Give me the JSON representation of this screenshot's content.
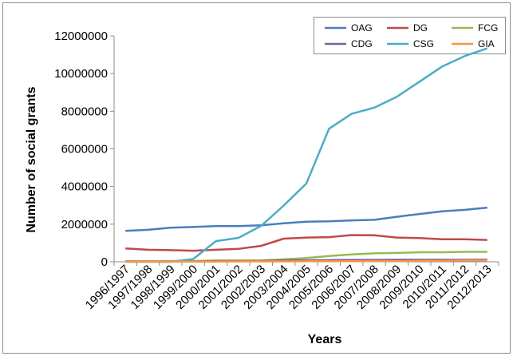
{
  "chart_data": {
    "type": "line",
    "title": "",
    "xlabel": "Years",
    "ylabel": "Number of social grants",
    "ylim": [
      0,
      12000000
    ],
    "yticks": [
      0,
      2000000,
      4000000,
      6000000,
      8000000,
      10000000,
      12000000
    ],
    "ytick_labels": [
      "0",
      "2000000",
      "4000000",
      "6000000",
      "8000000",
      "10000000",
      "12000000"
    ],
    "grid": false,
    "legend_position": "top-right",
    "categories": [
      "1996/1997",
      "1997/1998",
      "1998/1999",
      "1999/2000",
      "2000/2001",
      "2001/2002",
      "2002/2003",
      "2003/2004",
      "2004/2005",
      "2005/2006",
      "2006/2007",
      "2007/2008",
      "2008/2009",
      "2009/2010",
      "2010/2011",
      "2011/2012",
      "2012/2013"
    ],
    "series": [
      {
        "name": "OAG",
        "color": "#4A7EBB",
        "values": [
          1640000,
          1700000,
          1810000,
          1850000,
          1900000,
          1900000,
          1940000,
          2050000,
          2130000,
          2150000,
          2200000,
          2230000,
          2390000,
          2540000,
          2680000,
          2760000,
          2880000
        ]
      },
      {
        "name": "DG",
        "color": "#BE4B48",
        "values": [
          710000,
          640000,
          620000,
          590000,
          640000,
          690000,
          850000,
          1230000,
          1290000,
          1310000,
          1420000,
          1410000,
          1290000,
          1260000,
          1200000,
          1200000,
          1160000
        ]
      },
      {
        "name": "FCG",
        "color": "#98B954",
        "values": [
          40000,
          40000,
          40000,
          40000,
          70000,
          70000,
          80000,
          130000,
          200000,
          310000,
          390000,
          450000,
          470000,
          510000,
          510000,
          530000,
          530000
        ]
      },
      {
        "name": "CDG",
        "color": "#7D60A0",
        "values": [
          20000,
          20000,
          20000,
          20000,
          30000,
          30000,
          40000,
          70000,
          80000,
          90000,
          100000,
          100000,
          110000,
          110000,
          110000,
          110000,
          120000
        ]
      },
      {
        "name": "CSG",
        "color": "#4BACC6",
        "values": [
          0,
          0,
          0,
          150000,
          1100000,
          1270000,
          1910000,
          2990000,
          4160000,
          7070000,
          7860000,
          8190000,
          8770000,
          9570000,
          10370000,
          10930000,
          11340000
        ]
      },
      {
        "name": "GIA",
        "color": "#F79646",
        "values": [
          10000,
          10000,
          10000,
          10000,
          10000,
          20000,
          20000,
          20000,
          30000,
          30000,
          30000,
          40000,
          40000,
          50000,
          60000,
          70000,
          80000
        ]
      }
    ]
  }
}
